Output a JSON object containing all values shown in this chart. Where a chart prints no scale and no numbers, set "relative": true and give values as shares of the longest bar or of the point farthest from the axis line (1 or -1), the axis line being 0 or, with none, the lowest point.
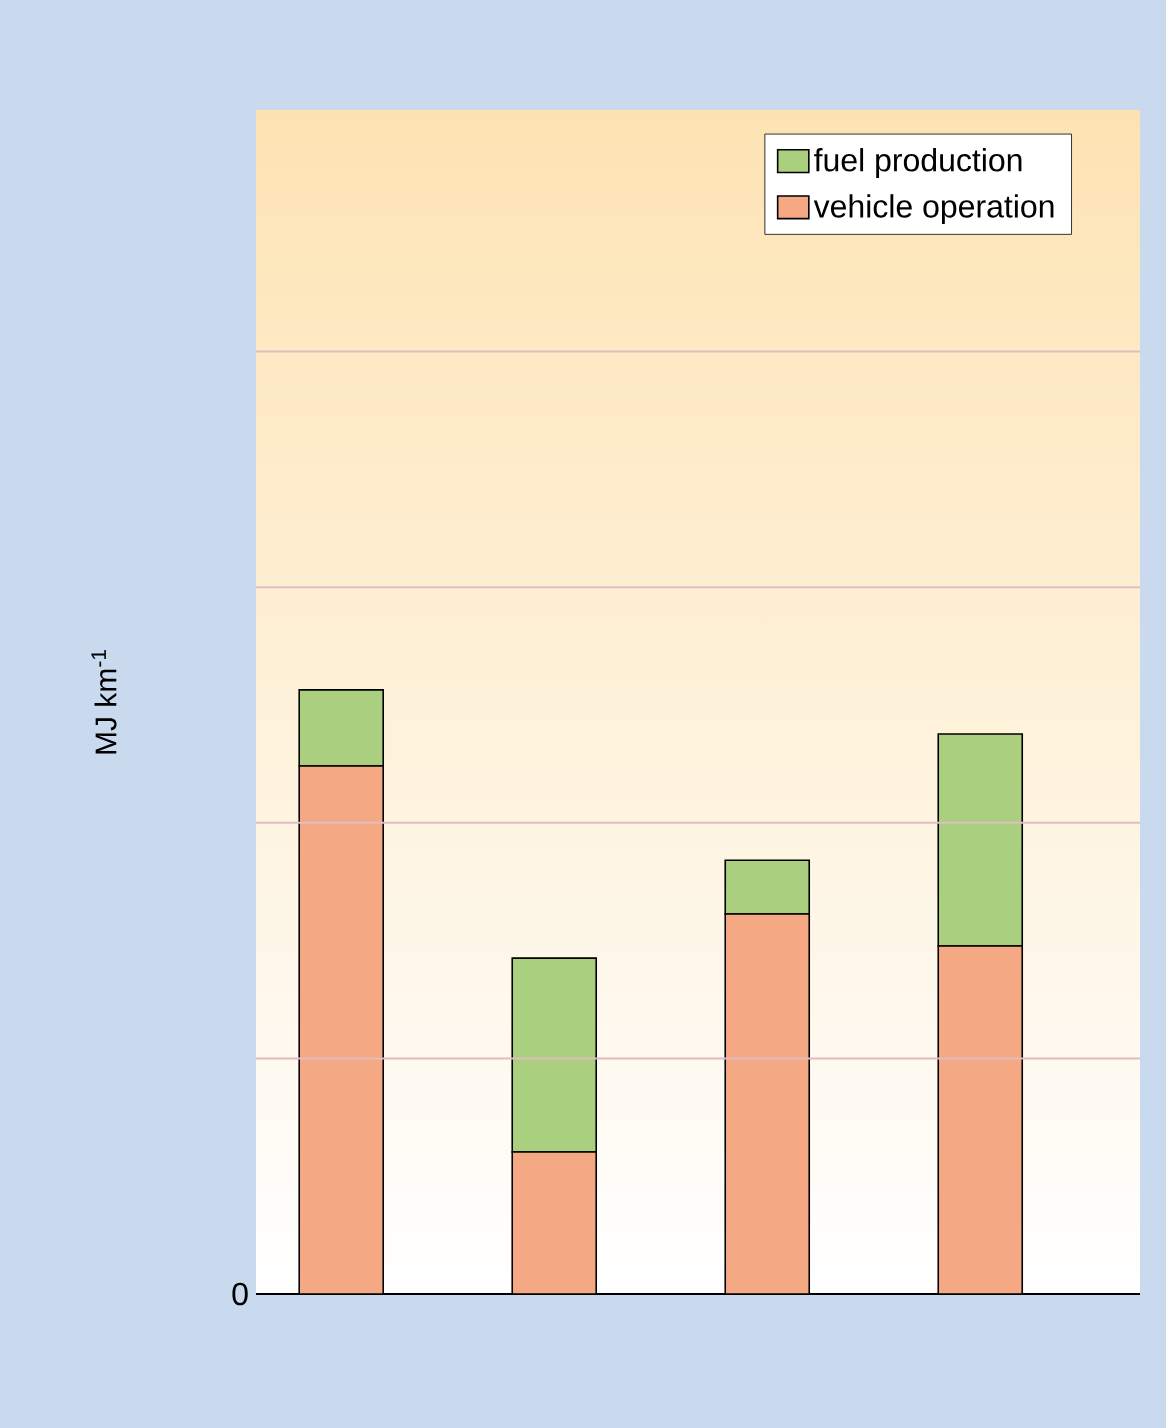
{
  "chart_data": {
    "type": "bar",
    "stacked": true,
    "relative": true,
    "ylabel": "MJ km$^{-1}$",
    "categories": [
      null,
      null,
      null,
      null
    ],
    "series": [
      {
        "name": "vehicle operation",
        "color": "#f4a984",
        "values": [
          0.874,
          0.235,
          0.629,
          0.576
        ]
      },
      {
        "name": "fuel production",
        "color": "#a9cf7f",
        "values": [
          0.126,
          0.321,
          0.089,
          0.351
        ]
      }
    ],
    "ref_lines": [
      {
        "axis": "y",
        "value": 0.39,
        "color": "#e2bcc0"
      },
      {
        "axis": "y",
        "value": 0.78,
        "color": "#e2bcc0"
      },
      {
        "axis": "y",
        "value": 1.17,
        "color": "#e2bcc0"
      },
      {
        "axis": "y",
        "value": 1.56,
        "color": "#e2bcc0"
      }
    ],
    "annotations": [
      "0"
    ],
    "legend": "top right"
  }
}
